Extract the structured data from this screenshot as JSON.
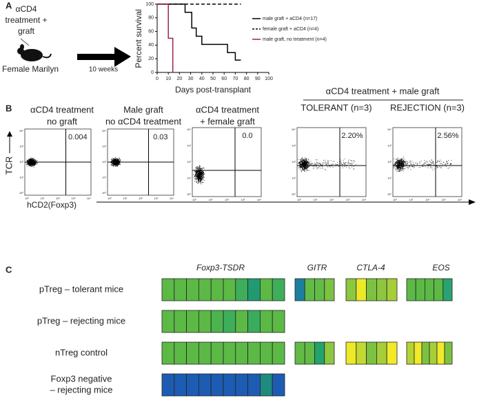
{
  "panel_a": {
    "label": "A",
    "treatment": [
      "αCD4",
      "treatment +",
      "graft"
    ],
    "mouse": "Female Marilyn",
    "arrow_label": "10 weeks"
  },
  "chart_data": {
    "type": "step",
    "ylabel": "Percent survival",
    "xlabel": "Days post-transplant",
    "xlim": [
      0,
      100
    ],
    "ylim": [
      0,
      100
    ],
    "xticks": [
      0,
      10,
      20,
      30,
      40,
      50,
      60,
      70,
      80,
      90,
      100
    ],
    "yticks": [
      0,
      20,
      40,
      60,
      80,
      100
    ],
    "series": [
      {
        "name": "male graft + aCD4 (n=17)",
        "color": "#000000",
        "dash": false,
        "x": [
          0,
          25,
          31,
          35,
          40,
          63,
          70,
          75
        ],
        "values": [
          100,
          88,
          65,
          53,
          41,
          29,
          18,
          18
        ]
      },
      {
        "name": "female graft + aCD4 (n=4)",
        "color": "#000000",
        "dash": true,
        "x": [
          0,
          75
        ],
        "values": [
          100,
          100
        ]
      },
      {
        "name": "male graft, no treatment (n=4)",
        "color": "#a0204a",
        "dash": false,
        "x": [
          0,
          10,
          14
        ],
        "values": [
          100,
          50,
          0
        ]
      }
    ]
  },
  "panel_b": {
    "label": "B",
    "group_title": "αCD4 treatment + male graft",
    "subgroups": [
      "TOLERANT (n=3)",
      "REJECTION (n=3)"
    ],
    "ylabel": "TCR",
    "xlabel": "hCD2(Foxp3)",
    "decade_ticks": [
      "10⁰",
      "10¹",
      "10²",
      "10³",
      "10⁴"
    ],
    "plots": [
      {
        "title": [
          "αCD4 treatment",
          "no graft"
        ],
        "value": "0.004"
      },
      {
        "title": [
          "Male graft",
          "no αCD4 treatment"
        ],
        "value": "0.03"
      },
      {
        "title": [
          "αCD4 treatment",
          "+ female graft"
        ],
        "value": "0.0"
      },
      {
        "title": [],
        "value": "2.20%"
      },
      {
        "title": [],
        "value": "2.56%"
      }
    ]
  },
  "panel_c": {
    "label": "C",
    "columns": [
      "Foxp3-TSDR",
      "GITR",
      "CTLA-4",
      "EOS"
    ],
    "rows": [
      {
        "label": [
          "pTreg – tolerant mice"
        ],
        "cells": [
          [
            "#5cb946",
            "#5cb946",
            "#5cb946",
            "#5cb946",
            "#5cb946",
            "#5cb946",
            "#3fae5a",
            "#219a72",
            "#5cb946",
            "#3fae5a"
          ],
          [
            "#1d7ea0",
            "#62bb46",
            "#62bb46",
            "#7cc242"
          ],
          [
            "#8dc63f",
            "#ecea28",
            "#7cc242",
            "#8dc63f",
            "#a6ce39"
          ],
          [
            "#5cb946",
            "#5cb946",
            "#5cb946",
            "#5cb946",
            "#2aa271"
          ]
        ]
      },
      {
        "label": [
          "pTreg – rejecting mice"
        ],
        "cells": [
          [
            "#5cb946",
            "#5cb946",
            "#5cb946",
            "#5cb946",
            "#4db34e",
            "#3fae5a",
            "#5cb946",
            "#3aac5d",
            "#5cb946",
            "#5cb946"
          ],
          [],
          [],
          []
        ]
      },
      {
        "label": [
          "nTreg control"
        ],
        "cells": [
          [
            "#5cb946",
            "#5cb946",
            "#5cb946",
            "#5cb946",
            "#5cb946",
            "#5cb946",
            "#5cb946",
            "#5cb946",
            "#5cb946",
            "#5cb946"
          ],
          [
            "#62bb46",
            "#62bb46",
            "#23a26e",
            "#8dc63f"
          ],
          [
            "#ecea28",
            "#c4d833",
            "#7cc242",
            "#a6ce39",
            "#f0ea2a"
          ],
          [
            "#b5d334",
            "#f0ea2a",
            "#7cc242",
            "#a6ce39",
            "#f0ea2a",
            "#7cc242"
          ]
        ]
      },
      {
        "label": [
          "Foxp3 negative",
          "– rejecting mice"
        ],
        "cells": [
          [
            "#1e5cb3",
            "#1e5cb3",
            "#1e5cb3",
            "#1e5cb3",
            "#1e5cb3",
            "#1e5cb3",
            "#1e5cb3",
            "#1e5cb3",
            "#1e8a80",
            "#1e5cb3"
          ],
          [],
          [],
          []
        ]
      }
    ]
  }
}
